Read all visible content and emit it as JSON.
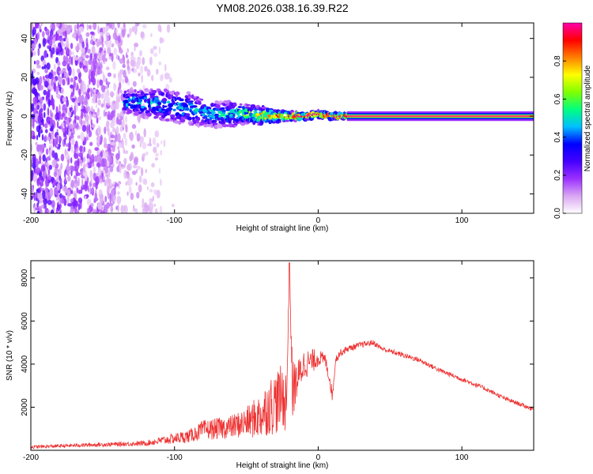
{
  "title": "YM08.2026.038.16.39.R22",
  "chart_data": [
    {
      "type": "heatmap",
      "xlabel": "Height of straight line (km)",
      "ylabel": "Frequency (Hz)",
      "xlim": [
        -200,
        150
      ],
      "ylim": [
        -50,
        48
      ],
      "xticks": [
        -200,
        -100,
        0,
        100
      ],
      "yticks": [
        -40,
        -20,
        0,
        20,
        40
      ],
      "colorbar": {
        "label": "Normalized spectral amplitude",
        "ticks": [
          0.0,
          0.2,
          0.4,
          0.6,
          0.8
        ],
        "range": [
          0,
          1
        ],
        "stops": [
          "#ffffff",
          "#d9a6f2",
          "#9b30ff",
          "#4400ff",
          "#0000ff",
          "#00bfff",
          "#00ff80",
          "#80ff00",
          "#ffff00",
          "#ff8000",
          "#ff0000",
          "#ff00aa"
        ]
      },
      "ridge": {
        "description_free": true,
        "x": [
          -130,
          -110,
          -100,
          -90,
          -80,
          -70,
          -60,
          -50,
          -40,
          -30,
          -20,
          -10,
          0,
          10,
          20,
          150
        ],
        "center_hz": [
          7,
          6,
          5,
          4,
          2,
          1,
          1,
          1,
          0.5,
          0,
          0,
          0,
          1,
          0,
          0,
          0
        ],
        "spread_hz": [
          4,
          5,
          5,
          5,
          5,
          4,
          4,
          3,
          3,
          2,
          1.5,
          1.2,
          1.2,
          1,
          0.8,
          0.8
        ],
        "amplitude": [
          0.45,
          0.45,
          0.45,
          0.45,
          0.45,
          0.45,
          0.5,
          0.6,
          0.7,
          0.8,
          0.85,
          0.9,
          0.95,
          0.95,
          1.0,
          1.0
        ]
      },
      "noise_extent_km": [
        -200,
        -110
      ]
    },
    {
      "type": "line",
      "xlabel": "Height of straight line (km)",
      "ylabel": "SNR (10 * v/v)",
      "xlim": [
        -200,
        150
      ],
      "ylim": [
        0,
        8800
      ],
      "xticks": [
        -200,
        -100,
        0,
        100
      ],
      "yticks": [
        2000,
        4000,
        6000,
        8000
      ],
      "series": [
        {
          "name": "SNR",
          "color": "#ee3333",
          "x": [
            -200,
            -180,
            -160,
            -140,
            -120,
            -100,
            -90,
            -80,
            -70,
            -60,
            -50,
            -40,
            -35,
            -30,
            -25,
            -22,
            -20,
            -18,
            -15,
            -10,
            -5,
            0,
            5,
            8,
            10,
            12,
            15,
            20,
            30,
            38,
            45,
            55,
            70,
            85,
            100,
            115,
            130,
            150
          ],
          "values": [
            150,
            200,
            250,
            280,
            330,
            550,
            650,
            950,
            1000,
            1100,
            1300,
            1600,
            2000,
            2200,
            2500,
            2300,
            8700,
            2800,
            3200,
            4000,
            4100,
            4300,
            4200,
            3300,
            2500,
            4200,
            4500,
            4700,
            4900,
            5000,
            4700,
            4500,
            4200,
            3700,
            3300,
            2900,
            2400,
            1900
          ],
          "noise_amplitude": [
            80,
            80,
            90,
            100,
            120,
            250,
            300,
            450,
            500,
            550,
            700,
            1100,
            1300,
            1500,
            1500,
            1500,
            0,
            1500,
            900,
            700,
            600,
            400,
            300,
            300,
            300,
            200,
            180,
            150,
            140,
            130,
            120,
            120,
            120,
            110,
            110,
            100,
            100,
            100
          ]
        }
      ]
    }
  ]
}
